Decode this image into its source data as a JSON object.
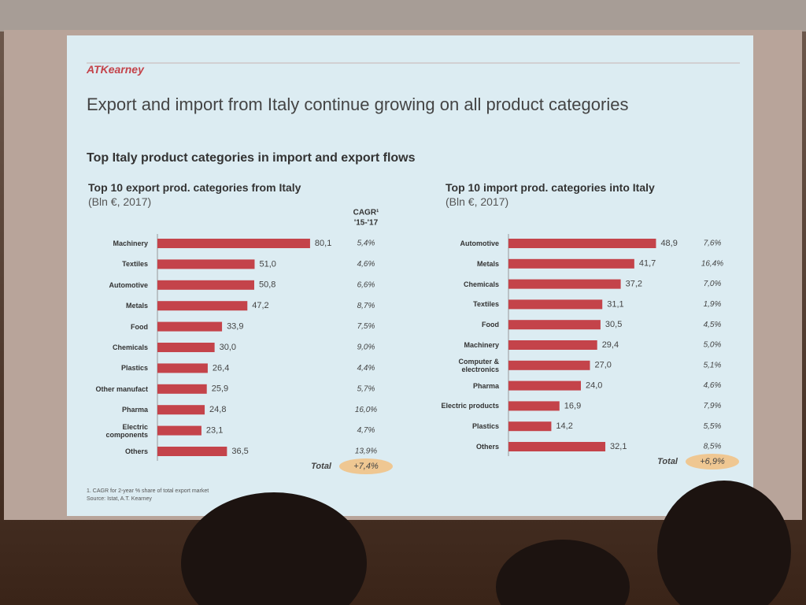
{
  "header": {
    "logo": "ATKearney",
    "title": "Export and import from Italy continue growing on all product categories",
    "subtitle": "Top Italy product categories in import and export flows"
  },
  "chart_data": [
    {
      "type": "bar",
      "orientation": "horizontal",
      "title": "Top 10 export prod. categories from Italy",
      "subtitle": "(Bln €, 2017)",
      "color": "#c4434a",
      "categories": [
        "Machinery",
        "Textiles",
        "Automotive",
        "Metals",
        "Food",
        "Chemicals",
        "Plastics",
        "Other manufact",
        "Pharma",
        "Electric components",
        "Others"
      ],
      "values": [
        80.1,
        51.0,
        50.8,
        47.2,
        33.9,
        30.0,
        26.4,
        25.9,
        24.8,
        23.1,
        36.5
      ],
      "value_labels": [
        "80,1",
        "51,0",
        "50,8",
        "47,2",
        "33,9",
        "30,0",
        "26,4",
        "25,9",
        "24,8",
        "23,1",
        "36,5"
      ],
      "xlim": [
        0,
        95
      ],
      "cagr_header": [
        "CAGR¹",
        "'15-'17"
      ],
      "cagr": {
        "values": [
          5.4,
          4.6,
          6.6,
          8.7,
          7.5,
          9.0,
          4.4,
          5.7,
          16.0,
          4.7,
          13.9
        ],
        "value_labels": [
          "5,4%",
          "4,6%",
          "6,6%",
          "8,7%",
          "7,5%",
          "9,0%",
          "4,4%",
          "5,7%",
          "16,0%",
          "4,7%",
          "13,9%"
        ]
      },
      "total": {
        "label": "Total",
        "value": 7.4,
        "value_label": "+7,4%"
      }
    },
    {
      "type": "bar",
      "orientation": "horizontal",
      "title": "Top 10 import prod. categories into Italy",
      "subtitle": "(Bln €, 2017)",
      "color": "#c4434a",
      "categories": [
        "Automotive",
        "Metals",
        "Chemicals",
        "Textiles",
        "Food",
        "Machinery",
        "Computer & electronics",
        "Pharma",
        "Electric products",
        "Plastics",
        "Others"
      ],
      "values": [
        48.9,
        41.7,
        37.2,
        31.1,
        30.5,
        29.4,
        27.0,
        24.0,
        16.9,
        14.2,
        32.1
      ],
      "value_labels": [
        "48,9",
        "41,7",
        "37,2",
        "31,1",
        "30,5",
        "29,4",
        "27,0",
        "24,0",
        "16,9",
        "14,2",
        "32,1"
      ],
      "xlim": [
        0,
        60
      ],
      "cagr": {
        "values": [
          7.6,
          16.4,
          7.0,
          1.9,
          4.5,
          5.0,
          5.1,
          4.6,
          7.9,
          5.5,
          8.5
        ],
        "value_labels": [
          "7,6%",
          "16,4%",
          "7,0%",
          "1,9%",
          "4,5%",
          "5,0%",
          "5,1%",
          "4,6%",
          "7,9%",
          "5,5%",
          "8,5%"
        ]
      },
      "total": {
        "label": "Total",
        "value": 6.9,
        "value_label": "+6,9%"
      }
    }
  ],
  "footnotes": [
    "1. CAGR for 2-year % share of total export market",
    "Source: Istat, A.T. Kearney"
  ]
}
